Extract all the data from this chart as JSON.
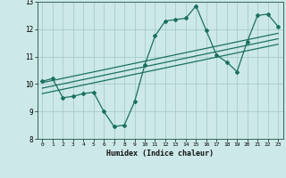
{
  "title": "",
  "xlabel": "Humidex (Indice chaleur)",
  "bg_color": "#cce8e8",
  "grid_color": "#aacccc",
  "line_color": "#1a7060",
  "xlim": [
    -0.5,
    23.5
  ],
  "ylim": [
    8,
    13
  ],
  "xticks": [
    0,
    1,
    2,
    3,
    4,
    5,
    6,
    7,
    8,
    9,
    10,
    11,
    12,
    13,
    14,
    15,
    16,
    17,
    18,
    19,
    20,
    21,
    22,
    23
  ],
  "yticks": [
    8,
    9,
    10,
    11,
    12,
    13
  ],
  "curve_x": [
    0,
    1,
    2,
    3,
    4,
    5,
    6,
    7,
    8,
    9,
    10,
    11,
    12,
    13,
    14,
    15,
    16,
    17,
    18,
    19,
    20,
    21,
    22,
    23
  ],
  "curve_y": [
    10.1,
    10.2,
    9.5,
    9.55,
    9.65,
    9.7,
    9.0,
    8.45,
    8.5,
    9.35,
    10.7,
    11.75,
    12.3,
    12.35,
    12.4,
    12.85,
    11.95,
    11.05,
    10.8,
    10.45,
    11.55,
    12.5,
    12.55,
    12.1
  ],
  "line1_x": [
    0,
    23
  ],
  "line1_y": [
    10.05,
    11.85
  ],
  "line2_x": [
    0,
    23
  ],
  "line2_y": [
    9.85,
    11.65
  ],
  "line3_x": [
    0,
    23
  ],
  "line3_y": [
    9.65,
    11.45
  ]
}
